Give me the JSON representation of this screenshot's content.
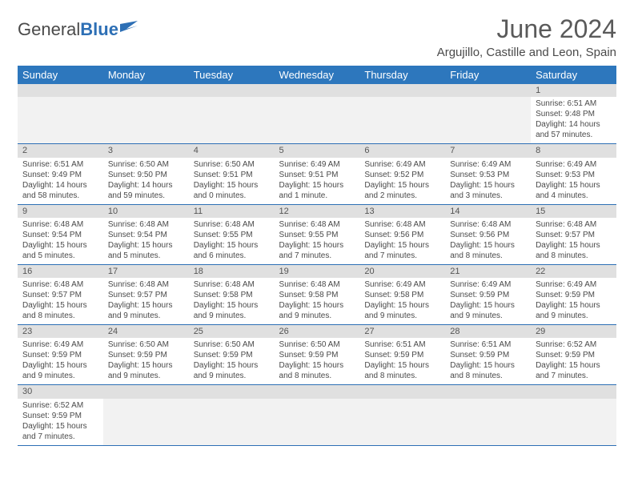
{
  "logo": {
    "text1": "General",
    "text2": "Blue"
  },
  "title": "June 2024",
  "location": "Argujillo, Castille and Leon, Spain",
  "colors": {
    "header_bg": "#2d77bd",
    "header_text": "#ffffff",
    "daynum_bg": "#e0e0e0",
    "border": "#2d6fb5",
    "body_bg": "#ffffff",
    "text": "#4a4a4a"
  },
  "weekdays": [
    "Sunday",
    "Monday",
    "Tuesday",
    "Wednesday",
    "Thursday",
    "Friday",
    "Saturday"
  ],
  "weeks": [
    [
      null,
      null,
      null,
      null,
      null,
      null,
      {
        "n": "1",
        "sr": "Sunrise: 6:51 AM",
        "ss": "Sunset: 9:48 PM",
        "dl": "Daylight: 14 hours and 57 minutes."
      }
    ],
    [
      {
        "n": "2",
        "sr": "Sunrise: 6:51 AM",
        "ss": "Sunset: 9:49 PM",
        "dl": "Daylight: 14 hours and 58 minutes."
      },
      {
        "n": "3",
        "sr": "Sunrise: 6:50 AM",
        "ss": "Sunset: 9:50 PM",
        "dl": "Daylight: 14 hours and 59 minutes."
      },
      {
        "n": "4",
        "sr": "Sunrise: 6:50 AM",
        "ss": "Sunset: 9:51 PM",
        "dl": "Daylight: 15 hours and 0 minutes."
      },
      {
        "n": "5",
        "sr": "Sunrise: 6:49 AM",
        "ss": "Sunset: 9:51 PM",
        "dl": "Daylight: 15 hours and 1 minute."
      },
      {
        "n": "6",
        "sr": "Sunrise: 6:49 AM",
        "ss": "Sunset: 9:52 PM",
        "dl": "Daylight: 15 hours and 2 minutes."
      },
      {
        "n": "7",
        "sr": "Sunrise: 6:49 AM",
        "ss": "Sunset: 9:53 PM",
        "dl": "Daylight: 15 hours and 3 minutes."
      },
      {
        "n": "8",
        "sr": "Sunrise: 6:49 AM",
        "ss": "Sunset: 9:53 PM",
        "dl": "Daylight: 15 hours and 4 minutes."
      }
    ],
    [
      {
        "n": "9",
        "sr": "Sunrise: 6:48 AM",
        "ss": "Sunset: 9:54 PM",
        "dl": "Daylight: 15 hours and 5 minutes."
      },
      {
        "n": "10",
        "sr": "Sunrise: 6:48 AM",
        "ss": "Sunset: 9:54 PM",
        "dl": "Daylight: 15 hours and 5 minutes."
      },
      {
        "n": "11",
        "sr": "Sunrise: 6:48 AM",
        "ss": "Sunset: 9:55 PM",
        "dl": "Daylight: 15 hours and 6 minutes."
      },
      {
        "n": "12",
        "sr": "Sunrise: 6:48 AM",
        "ss": "Sunset: 9:55 PM",
        "dl": "Daylight: 15 hours and 7 minutes."
      },
      {
        "n": "13",
        "sr": "Sunrise: 6:48 AM",
        "ss": "Sunset: 9:56 PM",
        "dl": "Daylight: 15 hours and 7 minutes."
      },
      {
        "n": "14",
        "sr": "Sunrise: 6:48 AM",
        "ss": "Sunset: 9:56 PM",
        "dl": "Daylight: 15 hours and 8 minutes."
      },
      {
        "n": "15",
        "sr": "Sunrise: 6:48 AM",
        "ss": "Sunset: 9:57 PM",
        "dl": "Daylight: 15 hours and 8 minutes."
      }
    ],
    [
      {
        "n": "16",
        "sr": "Sunrise: 6:48 AM",
        "ss": "Sunset: 9:57 PM",
        "dl": "Daylight: 15 hours and 8 minutes."
      },
      {
        "n": "17",
        "sr": "Sunrise: 6:48 AM",
        "ss": "Sunset: 9:57 PM",
        "dl": "Daylight: 15 hours and 9 minutes."
      },
      {
        "n": "18",
        "sr": "Sunrise: 6:48 AM",
        "ss": "Sunset: 9:58 PM",
        "dl": "Daylight: 15 hours and 9 minutes."
      },
      {
        "n": "19",
        "sr": "Sunrise: 6:48 AM",
        "ss": "Sunset: 9:58 PM",
        "dl": "Daylight: 15 hours and 9 minutes."
      },
      {
        "n": "20",
        "sr": "Sunrise: 6:49 AM",
        "ss": "Sunset: 9:58 PM",
        "dl": "Daylight: 15 hours and 9 minutes."
      },
      {
        "n": "21",
        "sr": "Sunrise: 6:49 AM",
        "ss": "Sunset: 9:59 PM",
        "dl": "Daylight: 15 hours and 9 minutes."
      },
      {
        "n": "22",
        "sr": "Sunrise: 6:49 AM",
        "ss": "Sunset: 9:59 PM",
        "dl": "Daylight: 15 hours and 9 minutes."
      }
    ],
    [
      {
        "n": "23",
        "sr": "Sunrise: 6:49 AM",
        "ss": "Sunset: 9:59 PM",
        "dl": "Daylight: 15 hours and 9 minutes."
      },
      {
        "n": "24",
        "sr": "Sunrise: 6:50 AM",
        "ss": "Sunset: 9:59 PM",
        "dl": "Daylight: 15 hours and 9 minutes."
      },
      {
        "n": "25",
        "sr": "Sunrise: 6:50 AM",
        "ss": "Sunset: 9:59 PM",
        "dl": "Daylight: 15 hours and 9 minutes."
      },
      {
        "n": "26",
        "sr": "Sunrise: 6:50 AM",
        "ss": "Sunset: 9:59 PM",
        "dl": "Daylight: 15 hours and 8 minutes."
      },
      {
        "n": "27",
        "sr": "Sunrise: 6:51 AM",
        "ss": "Sunset: 9:59 PM",
        "dl": "Daylight: 15 hours and 8 minutes."
      },
      {
        "n": "28",
        "sr": "Sunrise: 6:51 AM",
        "ss": "Sunset: 9:59 PM",
        "dl": "Daylight: 15 hours and 8 minutes."
      },
      {
        "n": "29",
        "sr": "Sunrise: 6:52 AM",
        "ss": "Sunset: 9:59 PM",
        "dl": "Daylight: 15 hours and 7 minutes."
      }
    ],
    [
      {
        "n": "30",
        "sr": "Sunrise: 6:52 AM",
        "ss": "Sunset: 9:59 PM",
        "dl": "Daylight: 15 hours and 7 minutes."
      },
      null,
      null,
      null,
      null,
      null,
      null
    ]
  ]
}
